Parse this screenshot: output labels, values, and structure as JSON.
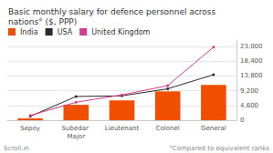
{
  "chart_data": {
    "type": "bar",
    "title": "Basic monthly salary for defence personnel across nations° ($, PPP)",
    "categories": [
      "Sepoy",
      "Subedar Major",
      "Lieutenant",
      "Colonel",
      "General"
    ],
    "series": [
      {
        "name": "India",
        "type": "bar",
        "color": "#f04e00",
        "values": [
          600,
          4800,
          6200,
          9000,
          11000
        ]
      },
      {
        "name": "USA",
        "type": "line",
        "color": "#2b2b2b",
        "marker": "circle",
        "values": [
          1200,
          7400,
          7600,
          9800,
          14200
        ]
      },
      {
        "name": "United Kingdom",
        "type": "line",
        "color": "#d63b8f",
        "marker": "circle",
        "values": [
          1500,
          5600,
          7900,
          10800,
          22800
        ]
      }
    ],
    "ylim": [
      0,
      25000
    ],
    "yticks": [
      0,
      {
        "value": 4600,
        "label": "4,600"
      },
      {
        "value": 9200,
        "label": "9,200"
      },
      {
        "value": 13800,
        "label": "13,800"
      },
      {
        "value": 18400,
        "label": "18,400"
      },
      {
        "value": 23000,
        "label": "23,000"
      }
    ],
    "grid": true,
    "legend": "upper left",
    "annotations": [
      "Scroll.in",
      "°Compared to equivalent ranks"
    ]
  }
}
